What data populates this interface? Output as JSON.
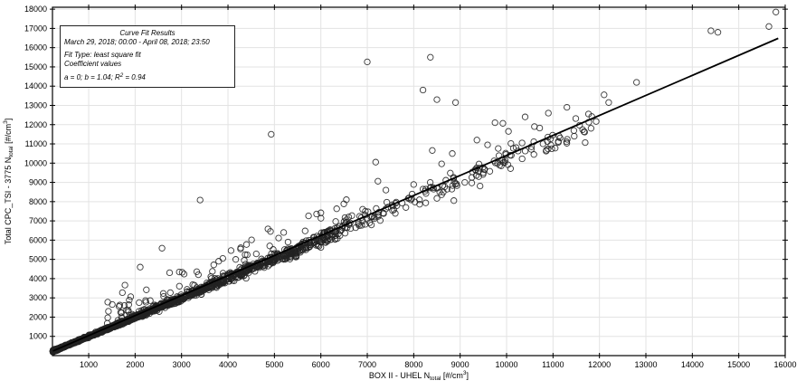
{
  "colors": {
    "background": "#ffffff",
    "grid": "#e3e3e3",
    "axis": "#000000",
    "marker_stroke": "#222222",
    "fit_line": "#000000",
    "text": "#000000",
    "legend_border": "#222222"
  },
  "legend": {
    "title": "Curve Fit Results",
    "date_range": "March 29, 2018; 00:00 - April 08, 2018; 23:50",
    "fit_type": "Fit Type: least square fit",
    "coeff_label": "Coefficient values",
    "coeff_prefix": "a = 0; b = 1.04; R",
    "coeff_sup": "2",
    "coeff_suffix": " = 0.94"
  },
  "axes": {
    "x": {
      "label_prefix": "BOX II - UHEL ",
      "n": "N",
      "n_sub": "total",
      "unit_prefix": " [#/cm",
      "unit_sup": "3",
      "unit_suffix": "]"
    },
    "y": {
      "label_prefix": "Total CPC_TSI - 3775 ",
      "n": "N",
      "n_sub": "total",
      "unit_prefix": " [#/cm",
      "unit_sup": "3",
      "unit_suffix": "]"
    }
  },
  "chart_data": {
    "type": "scatter",
    "title": "",
    "xlabel": "BOX II - UHEL N_total [#/cm^3]",
    "ylabel": "Total CPC_TSI - 3775 N_total [#/cm^3]",
    "xlim": [
      220,
      16000
    ],
    "ylim": [
      0,
      18100
    ],
    "grid": true,
    "marker": "open-circle",
    "x_ticks": [
      1000,
      2000,
      3000,
      4000,
      5000,
      6000,
      7000,
      8000,
      9000,
      10000,
      11000,
      12000,
      13000,
      14000,
      15000,
      16000
    ],
    "y_ticks": [
      1000,
      2000,
      3000,
      4000,
      5000,
      6000,
      7000,
      8000,
      9000,
      10000,
      11000,
      12000,
      13000,
      14000,
      15000,
      16000,
      17000,
      18000
    ],
    "fit_line": {
      "type": "least square fit",
      "a": 0,
      "b": 1.04,
      "r2": 0.94,
      "x_start": 230,
      "x_end": 15850
    },
    "outlier_points": [
      [
        1780,
        3660
      ],
      [
        2110,
        4600
      ],
      [
        2580,
        5580
      ],
      [
        3400,
        8080
      ],
      [
        4930,
        11500
      ],
      [
        6000,
        7420
      ],
      [
        4860,
        6580
      ],
      [
        5200,
        6400
      ],
      [
        6550,
        8100
      ],
      [
        7400,
        8600
      ],
      [
        6900,
        7600
      ],
      [
        7000,
        15260
      ],
      [
        8360,
        15500
      ],
      [
        8200,
        13800
      ],
      [
        8500,
        13300
      ],
      [
        8900,
        13150
      ],
      [
        7180,
        10050
      ],
      [
        7230,
        9060
      ],
      [
        8400,
        10660
      ],
      [
        8600,
        9960
      ],
      [
        8830,
        10500
      ],
      [
        9360,
        11200
      ],
      [
        9590,
        10950
      ],
      [
        9820,
        10760
      ],
      [
        9750,
        12100
      ],
      [
        9920,
        12070
      ],
      [
        10040,
        11650
      ],
      [
        10400,
        12400
      ],
      [
        10600,
        11900
      ],
      [
        8560,
        8500
      ],
      [
        8600,
        8360
      ],
      [
        8500,
        8170
      ],
      [
        8930,
        8830
      ],
      [
        9100,
        9000
      ],
      [
        9250,
        8970
      ],
      [
        9400,
        9300
      ],
      [
        10900,
        12600
      ],
      [
        11300,
        12900
      ],
      [
        12100,
        13550
      ],
      [
        12200,
        13150
      ],
      [
        12800,
        14200
      ],
      [
        14400,
        16880
      ],
      [
        14550,
        16800
      ],
      [
        15650,
        17100
      ],
      [
        15800,
        17850
      ]
    ],
    "dense_band": {
      "seed": 7,
      "clusters": [
        {
          "type": "band",
          "count": 1500,
          "x_min": 230,
          "x_max": 6300,
          "x_pow": 2.0,
          "slope": 1.0,
          "rel_sigma": 0.028,
          "min_sigma": 20
        },
        {
          "type": "band",
          "count": 180,
          "x_min": 6300,
          "x_max": 12000,
          "x_pow": 1.2,
          "slope": 1.02,
          "rel_sigma": 0.035,
          "min_sigma": 150
        },
        {
          "type": "halo",
          "count": 90,
          "x_min": 1400,
          "x_max": 6600,
          "x_pow": 1.4,
          "slope": 1.0,
          "offset_min": 200,
          "offset_max": 1600
        }
      ]
    }
  }
}
